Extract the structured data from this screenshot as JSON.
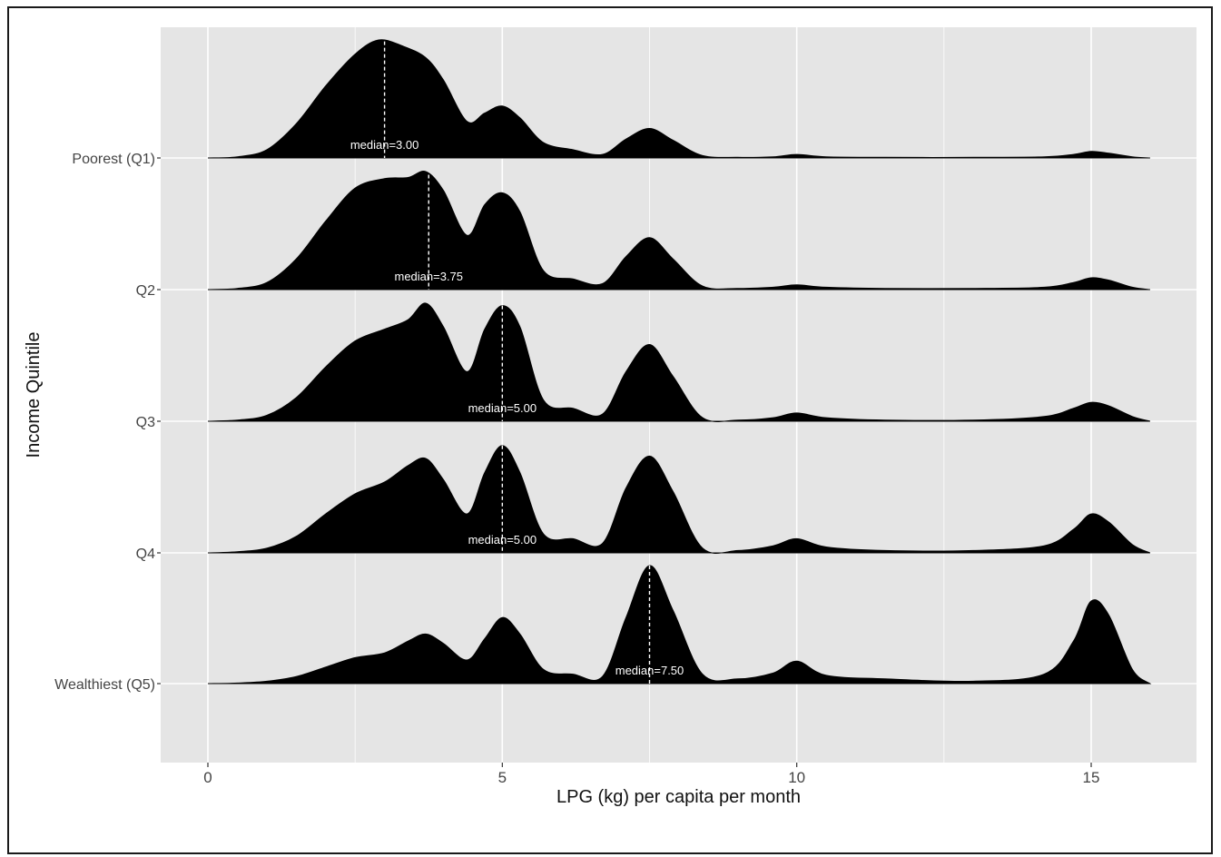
{
  "chart_data": {
    "type": "ridgeline-density",
    "xlabel": "LPG (kg) per capita per month",
    "ylabel": "Income Quintile",
    "xlim": [
      -0.8,
      16.8
    ],
    "xticks": [
      0,
      5,
      10,
      15
    ],
    "grid": true,
    "background": "#e5e5e5",
    "fill_color": "#000000",
    "median_line_style": "dashed white",
    "series": [
      {
        "name": "Poorest (Q1)",
        "median": 3.0,
        "median_label": "median=3.00",
        "density_x": [
          0,
          0.5,
          1.0,
          1.5,
          2.0,
          2.5,
          2.9,
          3.3,
          3.7,
          4.0,
          4.4,
          4.7,
          5.0,
          5.3,
          5.7,
          6.2,
          6.7,
          7.1,
          7.5,
          7.9,
          8.4,
          9.0,
          9.6,
          10.0,
          10.5,
          11.5,
          13.0,
          14.2,
          14.7,
          15.0,
          15.3,
          15.7,
          16.0
        ],
        "density_y": [
          0,
          0.01,
          0.07,
          0.29,
          0.61,
          0.88,
          1.0,
          0.95,
          0.85,
          0.66,
          0.31,
          0.38,
          0.44,
          0.34,
          0.13,
          0.07,
          0.03,
          0.16,
          0.25,
          0.15,
          0.02,
          0.005,
          0.01,
          0.03,
          0.01,
          0.005,
          0.005,
          0.01,
          0.03,
          0.055,
          0.04,
          0.01,
          0
        ]
      },
      {
        "name": "Q2",
        "median": 3.75,
        "median_label": "median=3.75",
        "density_x": [
          0,
          0.5,
          1.0,
          1.5,
          2.0,
          2.5,
          3.0,
          3.4,
          3.7,
          4.0,
          4.4,
          4.7,
          5.0,
          5.3,
          5.7,
          6.2,
          6.7,
          7.1,
          7.5,
          7.9,
          8.4,
          9.0,
          9.6,
          10.0,
          10.5,
          11.5,
          13.0,
          14.2,
          14.7,
          15.0,
          15.3,
          15.7,
          16.0
        ],
        "density_y": [
          0,
          0.01,
          0.06,
          0.26,
          0.58,
          0.86,
          0.94,
          0.95,
          1.0,
          0.84,
          0.46,
          0.72,
          0.82,
          0.66,
          0.16,
          0.09,
          0.05,
          0.28,
          0.44,
          0.26,
          0.03,
          0.01,
          0.02,
          0.04,
          0.02,
          0.01,
          0.01,
          0.02,
          0.06,
          0.1,
          0.08,
          0.02,
          0
        ]
      },
      {
        "name": "Q3",
        "median": 5.0,
        "median_label": "median=5.00",
        "density_x": [
          0,
          0.5,
          1.0,
          1.5,
          2.0,
          2.5,
          3.0,
          3.4,
          3.7,
          4.0,
          4.4,
          4.7,
          5.0,
          5.3,
          5.7,
          6.2,
          6.7,
          7.1,
          7.5,
          7.9,
          8.4,
          9.0,
          9.6,
          10.0,
          10.5,
          11.5,
          13.0,
          14.2,
          14.7,
          15.0,
          15.3,
          15.7,
          16.0
        ],
        "density_y": [
          0,
          0.01,
          0.05,
          0.2,
          0.46,
          0.68,
          0.78,
          0.86,
          1.0,
          0.8,
          0.42,
          0.78,
          0.98,
          0.8,
          0.18,
          0.11,
          0.06,
          0.42,
          0.65,
          0.38,
          0.03,
          0.01,
          0.03,
          0.07,
          0.03,
          0.01,
          0.01,
          0.04,
          0.11,
          0.16,
          0.13,
          0.04,
          0
        ]
      },
      {
        "name": "Q4",
        "median": 5.0,
        "median_label": "median=5.00",
        "density_x": [
          0,
          0.5,
          1.0,
          1.5,
          2.0,
          2.5,
          3.0,
          3.4,
          3.7,
          4.0,
          4.4,
          4.7,
          5.0,
          5.3,
          5.7,
          6.2,
          6.7,
          7.1,
          7.5,
          7.9,
          8.4,
          9.0,
          9.6,
          10.0,
          10.5,
          11.5,
          13.0,
          14.2,
          14.7,
          15.0,
          15.3,
          15.7,
          16.0
        ],
        "density_y": [
          0,
          0.01,
          0.04,
          0.14,
          0.33,
          0.5,
          0.6,
          0.74,
          0.8,
          0.62,
          0.33,
          0.68,
          0.91,
          0.68,
          0.16,
          0.12,
          0.08,
          0.55,
          0.82,
          0.52,
          0.04,
          0.02,
          0.06,
          0.12,
          0.05,
          0.02,
          0.02,
          0.06,
          0.2,
          0.33,
          0.26,
          0.07,
          0
        ]
      },
      {
        "name": "Wealthiest (Q5)",
        "median": 7.5,
        "median_label": "median=7.50",
        "density_x": [
          0,
          0.5,
          1.0,
          1.5,
          2.0,
          2.5,
          3.0,
          3.4,
          3.7,
          4.0,
          4.4,
          4.7,
          5.0,
          5.3,
          5.7,
          6.2,
          6.7,
          7.1,
          7.5,
          7.9,
          8.4,
          9.0,
          9.6,
          10.0,
          10.5,
          11.5,
          13.0,
          14.2,
          14.7,
          15.0,
          15.3,
          15.7,
          16.0
        ],
        "density_y": [
          0,
          0.005,
          0.02,
          0.06,
          0.14,
          0.22,
          0.26,
          0.36,
          0.42,
          0.34,
          0.2,
          0.38,
          0.56,
          0.42,
          0.12,
          0.08,
          0.06,
          0.56,
          1.0,
          0.62,
          0.08,
          0.04,
          0.09,
          0.19,
          0.07,
          0.04,
          0.02,
          0.08,
          0.36,
          0.7,
          0.58,
          0.12,
          0
        ]
      }
    ]
  }
}
